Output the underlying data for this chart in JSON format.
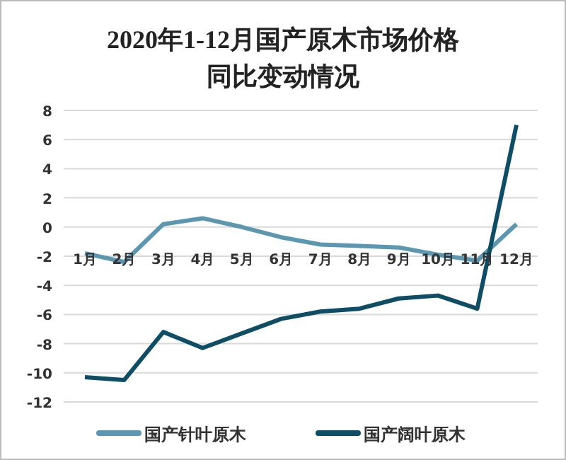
{
  "chart_data": {
    "type": "line",
    "title": "2020年1-12月国产原木市场价格同比变动情况",
    "categories": [
      "1月",
      "2月",
      "3月",
      "4月",
      "5月",
      "6月",
      "7月",
      "8月",
      "9月",
      "10月",
      "11月",
      "12月"
    ],
    "series": [
      {
        "name": "国产针叶原木",
        "color": "#5b97b0",
        "values": [
          -1.8,
          -2.4,
          0.2,
          0.6,
          0,
          -0.7,
          -1.2,
          -1.3,
          -1.4,
          -1.9,
          -2.3,
          0.2
        ]
      },
      {
        "name": "国产阔叶原木",
        "color": "#0e4d66",
        "values": [
          -10.3,
          -10.5,
          -7.2,
          -8.3,
          -7.3,
          -6.3,
          -5.8,
          -5.6,
          -4.9,
          -4.7,
          -5.6,
          7
        ]
      }
    ],
    "ylim": [
      -12,
      8
    ],
    "yticks": [
      -12,
      -10,
      -8,
      -6,
      -4,
      -2,
      0,
      2,
      4,
      6,
      8
    ],
    "grid": "y",
    "legend": "bottom",
    "marker": "none",
    "line_style": "solid"
  }
}
